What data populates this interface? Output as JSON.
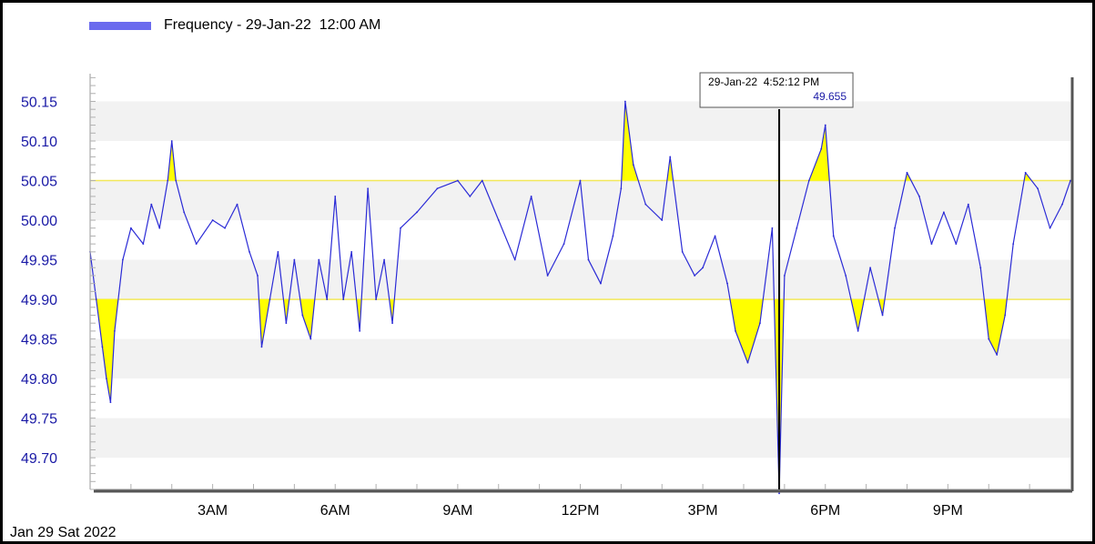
{
  "legend": {
    "label": "Frequency - 29-Jan-22  12:00 AM",
    "color": "#6b6bee"
  },
  "date_label": "Jan 29 Sat 2022",
  "tooltip": {
    "time": "29-Jan-22  4:52:12 PM",
    "value": "49.655"
  },
  "colors": {
    "line": "#2b2bd6",
    "fill": "#ffff00",
    "threshold": "#f2e85a",
    "band": "#f2f2f2",
    "ytick": "#1a1aa6",
    "cursor": "#000000"
  },
  "chart_data": {
    "type": "line",
    "title": "",
    "xlabel": "",
    "ylabel": "",
    "x_unit": "hours since 12:00 AM",
    "xlim": [
      0,
      24
    ],
    "ylim": [
      49.66,
      50.185
    ],
    "ytick_values": [
      49.7,
      49.75,
      49.8,
      49.85,
      49.9,
      49.95,
      50.0,
      50.05,
      50.1,
      50.15
    ],
    "ytick_labels": [
      "49.70",
      "49.75",
      "49.80",
      "49.85",
      "49.90",
      "49.95",
      "50.00",
      "50.05",
      "50.10",
      "50.15"
    ],
    "xtick_values": [
      3,
      6,
      9,
      12,
      15,
      18,
      21
    ],
    "xtick_labels": [
      "3AM",
      "6AM",
      "9AM",
      "12PM",
      "3PM",
      "6PM",
      "9PM"
    ],
    "thresholds": [
      49.9,
      50.05
    ],
    "cursor": {
      "x": 16.87,
      "y": 49.655
    },
    "legend": "top-left",
    "grid": "alternating horizontal bands",
    "series": [
      {
        "name": "Frequency - 29-Jan-22  12:00 AM",
        "x": [
          0,
          0.15,
          0.3,
          0.4,
          0.5,
          0.6,
          0.8,
          1.0,
          1.3,
          1.5,
          1.7,
          1.9,
          2.0,
          2.1,
          2.3,
          2.6,
          3.0,
          3.3,
          3.6,
          3.9,
          4.1,
          4.2,
          4.4,
          4.6,
          4.8,
          5.0,
          5.2,
          5.4,
          5.6,
          5.8,
          6.0,
          6.2,
          6.4,
          6.6,
          6.8,
          7.0,
          7.2,
          7.4,
          7.6,
          8.0,
          8.5,
          9.0,
          9.3,
          9.6,
          10.0,
          10.4,
          10.8,
          11.2,
          11.6,
          12.0,
          12.2,
          12.5,
          12.8,
          13.0,
          13.1,
          13.3,
          13.6,
          14.0,
          14.2,
          14.5,
          14.8,
          15.0,
          15.3,
          15.6,
          15.8,
          16.1,
          16.4,
          16.7,
          16.87,
          17.0,
          17.3,
          17.6,
          17.9,
          18.0,
          18.2,
          18.5,
          18.8,
          19.1,
          19.4,
          19.7,
          20.0,
          20.3,
          20.6,
          20.9,
          21.2,
          21.5,
          21.8,
          22.0,
          22.2,
          22.4,
          22.6,
          22.9,
          23.2,
          23.5,
          23.8,
          24.0
        ],
        "values": [
          49.96,
          49.9,
          49.84,
          49.8,
          49.77,
          49.86,
          49.95,
          49.99,
          49.97,
          50.02,
          49.99,
          50.05,
          50.1,
          50.05,
          50.01,
          49.97,
          50.0,
          49.99,
          50.02,
          49.96,
          49.93,
          49.84,
          49.9,
          49.96,
          49.87,
          49.95,
          49.88,
          49.85,
          49.95,
          49.9,
          50.03,
          49.9,
          49.96,
          49.86,
          50.04,
          49.9,
          49.95,
          49.87,
          49.99,
          50.01,
          50.04,
          50.05,
          50.03,
          50.05,
          50.0,
          49.95,
          50.03,
          49.93,
          49.97,
          50.05,
          49.95,
          49.92,
          49.98,
          50.04,
          50.15,
          50.07,
          50.02,
          50.0,
          50.08,
          49.96,
          49.93,
          49.94,
          49.98,
          49.92,
          49.86,
          49.82,
          49.87,
          49.99,
          49.655,
          49.93,
          49.99,
          50.05,
          50.09,
          50.12,
          49.98,
          49.93,
          49.86,
          49.94,
          49.88,
          49.99,
          50.06,
          50.03,
          49.97,
          50.01,
          49.97,
          50.02,
          49.94,
          49.85,
          49.83,
          49.88,
          49.97,
          50.06,
          50.04,
          49.99,
          50.02,
          50.05
        ]
      }
    ]
  }
}
